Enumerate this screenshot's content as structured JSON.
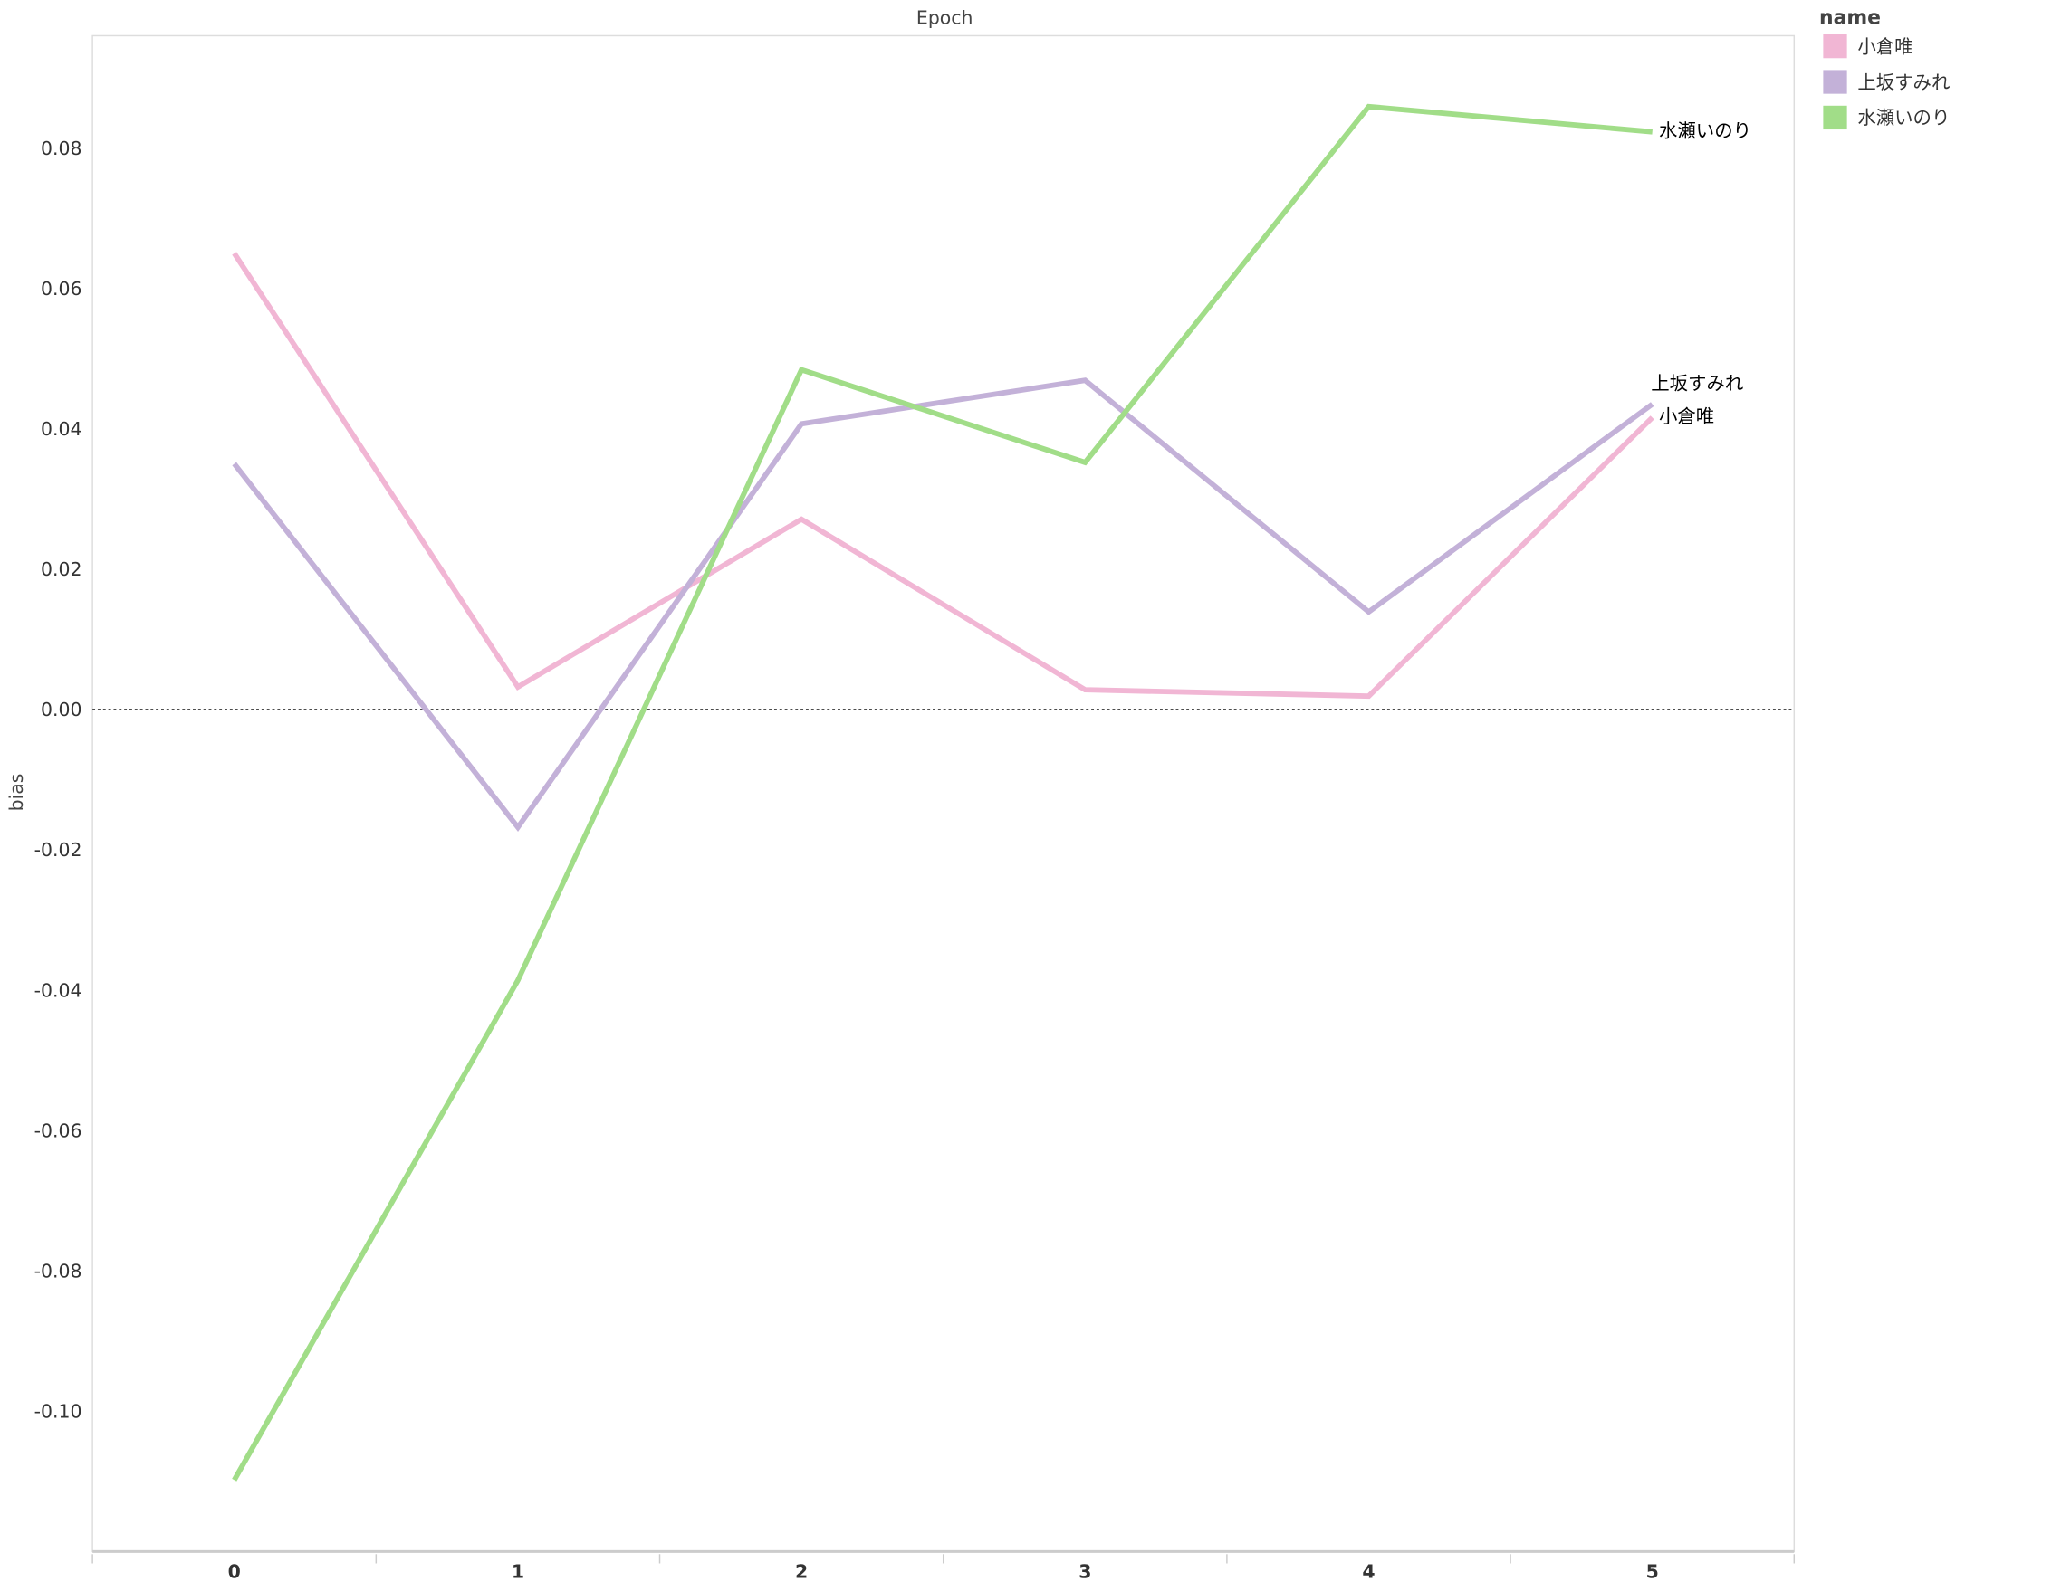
{
  "chart_data": {
    "type": "line",
    "title": "",
    "xlabel": "Epoch",
    "ylabel": "bias",
    "x": [
      0,
      1,
      2,
      3,
      4,
      5
    ],
    "x_ticks": [
      "0",
      "1",
      "2",
      "3",
      "4",
      "5"
    ],
    "xlim": [
      -0.5,
      5.5
    ],
    "ylim": [
      -0.12,
      0.096
    ],
    "y_ticks": [
      -0.1,
      -0.08,
      -0.06,
      -0.04,
      -0.02,
      0.0,
      0.02,
      0.04,
      0.06,
      0.08
    ],
    "y_tick_labels": [
      "-0.10",
      "-0.08",
      "-0.06",
      "-0.04",
      "-0.02",
      "0.00",
      "0.02",
      "0.04",
      "0.06",
      "0.08"
    ],
    "reference_line": 0,
    "grid": false,
    "legend": {
      "title": "name",
      "placement": "right"
    },
    "series": [
      {
        "name": "小倉唯",
        "color": "#f1b6d4",
        "values": [
          0.065,
          0.0032,
          0.0271,
          0.0028,
          0.0019,
          0.0416
        ]
      },
      {
        "name": "上坂すみれ",
        "color": "#c3b1d8",
        "values": [
          0.035,
          -0.0168,
          0.0407,
          0.0469,
          0.0139,
          0.0435
        ]
      },
      {
        "name": "水瀬いのり",
        "color": "#a1dd88",
        "values": [
          -0.1098,
          -0.0386,
          0.0484,
          0.0352,
          0.0859,
          0.0823
        ]
      }
    ]
  }
}
